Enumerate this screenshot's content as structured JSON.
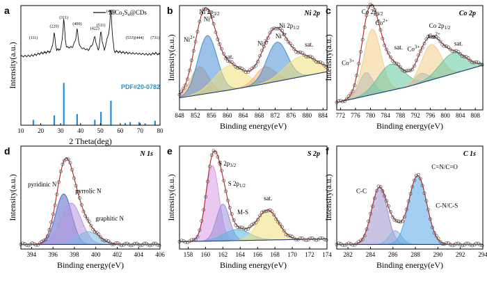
{
  "chart_data": [
    {
      "panel": "a",
      "type": "line",
      "xlabel": "2 Theta(deg)",
      "ylabel": "Intensity(a.u.)",
      "xlim": [
        10,
        80
      ],
      "xticks": [
        10,
        20,
        30,
        40,
        50,
        60,
        70,
        80
      ],
      "legend": "NiCo2S4@CDs",
      "reference": "PDF#20-0782",
      "pattern": [
        [
          10,
          0.3
        ],
        [
          15,
          0.31
        ],
        [
          18,
          0.33
        ],
        [
          20,
          0.35
        ],
        [
          22,
          0.36
        ],
        [
          25,
          0.38
        ],
        [
          26.8,
          0.58
        ],
        [
          28,
          0.4
        ],
        [
          30,
          0.42
        ],
        [
          31.6,
          0.72
        ],
        [
          33,
          0.44
        ],
        [
          36,
          0.45
        ],
        [
          38.3,
          0.62
        ],
        [
          40,
          0.44
        ],
        [
          44,
          0.4
        ],
        [
          47.2,
          0.55
        ],
        [
          49,
          0.4
        ],
        [
          50.3,
          0.6
        ],
        [
          52,
          0.4
        ],
        [
          55.3,
          0.82
        ],
        [
          57,
          0.38
        ],
        [
          62,
          0.36
        ],
        [
          65,
          0.35
        ],
        [
          70,
          0.34
        ],
        [
          75,
          0.33
        ],
        [
          77.5,
          0.35
        ],
        [
          80,
          0.33
        ]
      ],
      "peak_labels": [
        {
          "x": 16.3,
          "text": "(111)"
        },
        {
          "x": 26.8,
          "text": "(220)"
        },
        {
          "x": 31.6,
          "text": "(311)"
        },
        {
          "x": 38.3,
          "text": "(400)"
        },
        {
          "x": 47.2,
          "text": "(422)"
        },
        {
          "x": 50.3,
          "text": "(511)"
        },
        {
          "x": 55.3,
          "text": "(440)"
        },
        {
          "x": 65.0,
          "text": "(533)"
        },
        {
          "x": 69.5,
          "text": "(444)"
        },
        {
          "x": 77.5,
          "text": "(731)"
        }
      ],
      "ref_sticks": [
        [
          16.3,
          0.12
        ],
        [
          26.8,
          0.22
        ],
        [
          31.6,
          0.95
        ],
        [
          38.3,
          0.25
        ],
        [
          47.2,
          0.12
        ],
        [
          50.3,
          0.3
        ],
        [
          55.3,
          0.55
        ],
        [
          62.5,
          0.05
        ],
        [
          65.0,
          0.07
        ],
        [
          69.5,
          0.07
        ],
        [
          72.5,
          0.04
        ],
        [
          77.5,
          0.1
        ]
      ]
    },
    {
      "panel": "b",
      "type": "area",
      "title": "Ni 2p",
      "xlabel": "Binding energy(eV)",
      "ylabel": "Intensity(a.u.)",
      "xlim": [
        848,
        885
      ],
      "xticks": [
        848,
        852,
        856,
        860,
        864,
        868,
        872,
        876,
        880,
        884
      ],
      "reversed": false,
      "baseline": [
        [
          848,
          0.1
        ],
        [
          860,
          0.18
        ],
        [
          868,
          0.24
        ],
        [
          885,
          0.38
        ]
      ],
      "components": [
        {
          "name": "Ni2+",
          "center": 853.0,
          "height": 0.3,
          "width": 2.2,
          "color": "#f5b57a"
        },
        {
          "name": "Ni3+",
          "center": 855.0,
          "height": 0.62,
          "width": 2.4,
          "color": "#4a8fd4"
        },
        {
          "name": "sat.",
          "center": 860.5,
          "height": 0.26,
          "width": 3.8,
          "color": "#f0e07a"
        },
        {
          "name": "Ni2+",
          "center": 869.5,
          "height": 0.18,
          "width": 2.4,
          "color": "#f5b57a"
        },
        {
          "name": "Ni3+",
          "center": 872.5,
          "height": 0.42,
          "width": 2.6,
          "color": "#4a8fd4"
        },
        {
          "name": "sat.",
          "center": 878.5,
          "height": 0.22,
          "width": 4.0,
          "color": "#f0e07a"
        }
      ],
      "annotations": [
        {
          "text": "Ni 2p3/2",
          "x": 855.5,
          "y": 1.0
        },
        {
          "text": "Ni3+",
          "x": 855.5,
          "y": 0.92
        },
        {
          "text": "Ni2+",
          "x": 850.5,
          "y": 0.7
        },
        {
          "text": "sat.",
          "x": 860.5,
          "y": 0.52
        },
        {
          "text": "Ni2+",
          "x": 869.0,
          "y": 0.66
        },
        {
          "text": "Ni 2p1/2",
          "x": 875.5,
          "y": 0.85
        },
        {
          "text": "Ni3+",
          "x": 873.5,
          "y": 0.74
        },
        {
          "text": "sat.",
          "x": 880.5,
          "y": 0.65
        }
      ]
    },
    {
      "panel": "c",
      "type": "area",
      "title": "Co 2p",
      "xlabel": "Binding energy(eV)",
      "ylabel": "Intensity(a.u.)",
      "xlim": [
        771,
        810
      ],
      "xticks": [
        772,
        776,
        780,
        784,
        788,
        792,
        796,
        800,
        804,
        808
      ],
      "reversed": false,
      "baseline": [
        [
          771,
          0.05
        ],
        [
          790,
          0.22
        ],
        [
          810,
          0.45
        ]
      ],
      "components": [
        {
          "name": "Co3+",
          "center": 778.8,
          "height": 0.25,
          "width": 1.8,
          "color": "#7ba7d8"
        },
        {
          "name": "Co2+",
          "center": 780.5,
          "height": 0.7,
          "width": 2.3,
          "color": "#f2d08a"
        },
        {
          "name": "sat.",
          "center": 785.5,
          "height": 0.28,
          "width": 3.5,
          "color": "#5fc7a0"
        },
        {
          "name": "Co3+",
          "center": 793.5,
          "height": 0.1,
          "width": 1.8,
          "color": "#7ba7d8"
        },
        {
          "name": "Co2+",
          "center": 796.2,
          "height": 0.38,
          "width": 2.6,
          "color": "#f2d08a"
        },
        {
          "name": "sat.",
          "center": 802.0,
          "height": 0.22,
          "width": 3.5,
          "color": "#5fc7a0"
        }
      ],
      "annotations": [
        {
          "text": "Co 2p3/2",
          "x": 780.5,
          "y": 1.0
        },
        {
          "text": "Co2+",
          "x": 783.0,
          "y": 0.88
        },
        {
          "text": "Co3+",
          "x": 774.0,
          "y": 0.45
        },
        {
          "text": "sat.",
          "x": 787.5,
          "y": 0.62
        },
        {
          "text": "Co3+",
          "x": 791.5,
          "y": 0.6
        },
        {
          "text": "Co 2p1/2",
          "x": 798.5,
          "y": 0.85
        },
        {
          "text": "Co2+",
          "x": 797.0,
          "y": 0.74
        },
        {
          "text": "sat.",
          "x": 803.5,
          "y": 0.66
        }
      ]
    },
    {
      "panel": "d",
      "type": "area",
      "title": "N 1s",
      "xlabel": "Binding energy(eV)",
      "ylabel": "Intensity(a.u.)",
      "xlim": [
        393,
        406
      ],
      "xticks": [
        394,
        396,
        398,
        400,
        402,
        404,
        406
      ],
      "reversed": false,
      "baseline": [
        [
          393,
          0.02
        ],
        [
          406,
          0.02
        ]
      ],
      "components": [
        {
          "name": "pyridinic N",
          "center": 397.0,
          "height": 0.55,
          "width": 0.75,
          "color": "#5566c8"
        },
        {
          "name": "pyrrolic N",
          "center": 397.7,
          "height": 0.45,
          "width": 0.95,
          "color": "#b595e0"
        },
        {
          "name": "graphitic N",
          "center": 399.3,
          "height": 0.14,
          "width": 1.0,
          "color": "#7ab8e0"
        }
      ],
      "annotations": [
        {
          "text": "pyridinic N",
          "x": 395.0,
          "y": 0.65
        },
        {
          "text": "pyrrolic N",
          "x": 399.3,
          "y": 0.58
        },
        {
          "text": "graphitic N",
          "x": 401.3,
          "y": 0.28
        }
      ]
    },
    {
      "panel": "e",
      "type": "area",
      "title": "S 2p",
      "xlabel": "Binding energy(eV)",
      "ylabel": "Intensity(a.u.)",
      "xlim": [
        157,
        174
      ],
      "xticks": [
        158,
        160,
        162,
        164,
        166,
        168,
        170,
        172,
        174
      ],
      "reversed": false,
      "baseline": [
        [
          157,
          0.05
        ],
        [
          174,
          0.08
        ]
      ],
      "components": [
        {
          "name": "S 2p3/2",
          "center": 160.8,
          "height": 0.82,
          "width": 0.75,
          "color": "#d79be5"
        },
        {
          "name": "S 2p1/2",
          "center": 162.0,
          "height": 0.4,
          "width": 0.75,
          "color": "#9c8fd8"
        },
        {
          "name": "M-S",
          "center": 163.6,
          "height": 0.12,
          "width": 1.5,
          "color": "#55b5e0"
        },
        {
          "name": "sat.",
          "center": 167.2,
          "height": 0.32,
          "width": 1.2,
          "color": "#f0e07a"
        }
      ],
      "annotations": [
        {
          "text": "S 2p3/2",
          "x": 162.5,
          "y": 0.88
        },
        {
          "text": "S 2p1/2",
          "x": 163.6,
          "y": 0.66
        },
        {
          "text": "M-S",
          "x": 164.3,
          "y": 0.35
        },
        {
          "text": "sat.",
          "x": 167.2,
          "y": 0.5
        }
      ]
    },
    {
      "panel": "f",
      "type": "area",
      "title": "C 1s",
      "xlabel": "Binding energy(eV)",
      "ylabel": "Intensity(a.u.)",
      "xlim": [
        281,
        294
      ],
      "xticks": [
        282,
        284,
        286,
        288,
        290,
        292,
        294
      ],
      "reversed": false,
      "baseline": [
        [
          281,
          0.02
        ],
        [
          294,
          0.02
        ]
      ],
      "components": [
        {
          "name": "C-C",
          "center": 284.8,
          "height": 0.62,
          "width": 0.7,
          "color": "#9d91cd"
        },
        {
          "name": "C-N/C-S",
          "center": 286.2,
          "height": 0.15,
          "width": 0.55,
          "color": "#8fb2dd"
        },
        {
          "name": "C=N/C=O",
          "center": 288.2,
          "height": 0.75,
          "width": 0.8,
          "color": "#5aa8e6"
        }
      ],
      "annotations": [
        {
          "text": "C-C",
          "x": 283.2,
          "y": 0.58
        },
        {
          "text": "C=N/C=O",
          "x": 290.6,
          "y": 0.84
        },
        {
          "text": "C-N/C-S",
          "x": 290.8,
          "y": 0.42
        }
      ]
    }
  ]
}
